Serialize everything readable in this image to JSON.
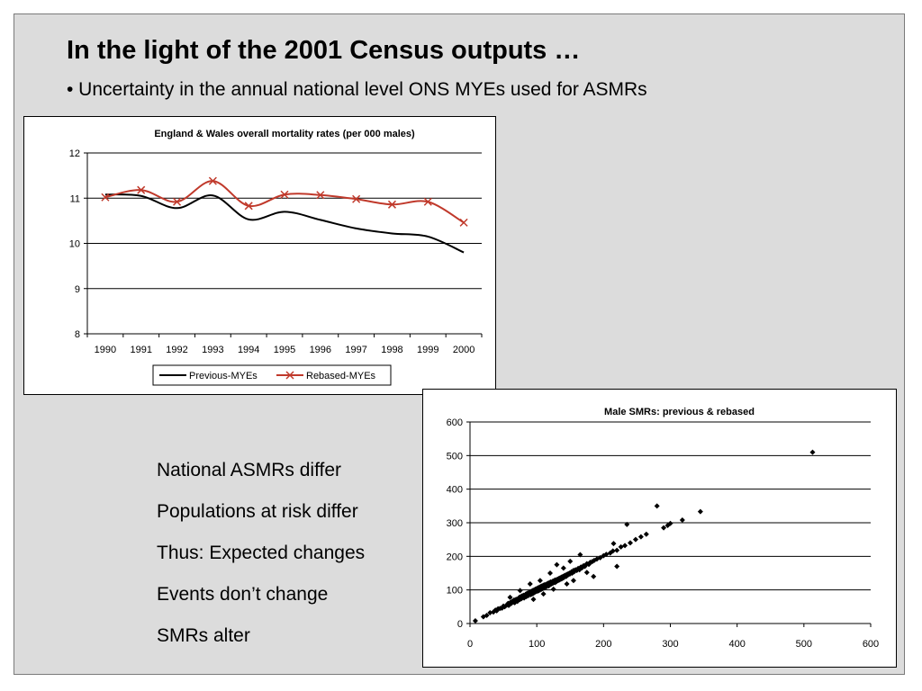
{
  "slide": {
    "title": "In the light of the 2001 Census outputs …",
    "subtitle": "• Uncertainty in the annual national level ONS MYEs used for ASMRs",
    "points": [
      "National ASMRs differ",
      "Populations at risk differ",
      "Thus: Expected changes",
      "Events don’t change",
      "SMRs alter"
    ]
  },
  "chart_data": [
    {
      "type": "line",
      "title": "England & Wales overall mortality rates (per 000 males)",
      "xlabel": "",
      "ylabel": "",
      "x": [
        1990,
        1991,
        1992,
        1993,
        1994,
        1995,
        1996,
        1997,
        1998,
        1999,
        2000
      ],
      "ylim": [
        8,
        12
      ],
      "yticks": [
        8,
        9,
        10,
        11,
        12
      ],
      "grid": "horizontal",
      "legend": "bottom",
      "series": [
        {
          "name": "Previous-MYEs",
          "color": "#000000",
          "marker": "none",
          "values": [
            11.08,
            11.05,
            10.78,
            11.06,
            10.53,
            10.7,
            10.52,
            10.33,
            10.22,
            10.15,
            9.8
          ]
        },
        {
          "name": "Rebased-MYEs",
          "color": "#c0392b",
          "marker": "cross",
          "values": [
            11.02,
            11.18,
            10.92,
            11.38,
            10.83,
            11.08,
            11.07,
            10.98,
            10.86,
            10.92,
            10.46
          ]
        }
      ]
    },
    {
      "type": "scatter",
      "title": "Male SMRs: previous & rebased",
      "xlabel": "",
      "ylabel": "",
      "xlim": [
        0,
        600
      ],
      "ylim": [
        0,
        600
      ],
      "xticks": [
        0,
        100,
        200,
        300,
        400,
        500,
        600
      ],
      "yticks": [
        0,
        100,
        200,
        300,
        400,
        500,
        600
      ],
      "grid": "horizontal",
      "color": "#000000",
      "points": [
        [
          8,
          8
        ],
        [
          20,
          20
        ],
        [
          25,
          24
        ],
        [
          30,
          32
        ],
        [
          35,
          34
        ],
        [
          38,
          40
        ],
        [
          40,
          38
        ],
        [
          42,
          44
        ],
        [
          45,
          45
        ],
        [
          48,
          46
        ],
        [
          50,
          52
        ],
        [
          52,
          50
        ],
        [
          55,
          55
        ],
        [
          57,
          60
        ],
        [
          58,
          54
        ],
        [
          60,
          62
        ],
        [
          60,
          58
        ],
        [
          62,
          60
        ],
        [
          63,
          66
        ],
        [
          65,
          64
        ],
        [
          66,
          70
        ],
        [
          67,
          62
        ],
        [
          68,
          68
        ],
        [
          69,
          72
        ],
        [
          70,
          70
        ],
        [
          71,
          66
        ],
        [
          72,
          74
        ],
        [
          73,
          71
        ],
        [
          74,
          78
        ],
        [
          75,
          72
        ],
        [
          75,
          76
        ],
        [
          76,
          80
        ],
        [
          77,
          74
        ],
        [
          78,
          76
        ],
        [
          78,
          82
        ],
        [
          79,
          79
        ],
        [
          80,
          80
        ],
        [
          80,
          84
        ],
        [
          81,
          76
        ],
        [
          82,
          82
        ],
        [
          83,
          86
        ],
        [
          84,
          80
        ],
        [
          84,
          88
        ],
        [
          85,
          84
        ],
        [
          86,
          90
        ],
        [
          86,
          82
        ],
        [
          87,
          86
        ],
        [
          88,
          92
        ],
        [
          88,
          84
        ],
        [
          89,
          88
        ],
        [
          90,
          90
        ],
        [
          90,
          94
        ],
        [
          91,
          86
        ],
        [
          92,
          92
        ],
        [
          92,
          96
        ],
        [
          93,
          88
        ],
        [
          94,
          94
        ],
        [
          94,
          98
        ],
        [
          95,
          90
        ],
        [
          95,
          96
        ],
        [
          96,
          100
        ],
        [
          96,
          92
        ],
        [
          97,
          98
        ],
        [
          98,
          94
        ],
        [
          98,
          102
        ],
        [
          99,
          96
        ],
        [
          100,
          100
        ],
        [
          100,
          104
        ],
        [
          101,
          96
        ],
        [
          102,
          102
        ],
        [
          102,
          106
        ],
        [
          103,
          98
        ],
        [
          104,
          104
        ],
        [
          104,
          108
        ],
        [
          105,
          100
        ],
        [
          106,
          106
        ],
        [
          106,
          110
        ],
        [
          107,
          102
        ],
        [
          108,
          108
        ],
        [
          108,
          112
        ],
        [
          109,
          104
        ],
        [
          110,
          110
        ],
        [
          110,
          114
        ],
        [
          111,
          106
        ],
        [
          112,
          112
        ],
        [
          112,
          116
        ],
        [
          113,
          108
        ],
        [
          114,
          114
        ],
        [
          115,
          118
        ],
        [
          115,
          110
        ],
        [
          116,
          116
        ],
        [
          117,
          120
        ],
        [
          118,
          112
        ],
        [
          118,
          118
        ],
        [
          119,
          122
        ],
        [
          120,
          116
        ],
        [
          120,
          120
        ],
        [
          121,
          124
        ],
        [
          122,
          118
        ],
        [
          123,
          122
        ],
        [
          124,
          126
        ],
        [
          124,
          120
        ],
        [
          125,
          124
        ],
        [
          126,
          128
        ],
        [
          127,
          122
        ],
        [
          128,
          126
        ],
        [
          128,
          130
        ],
        [
          129,
          124
        ],
        [
          130,
          130
        ],
        [
          131,
          132
        ],
        [
          132,
          128
        ],
        [
          133,
          134
        ],
        [
          134,
          130
        ],
        [
          135,
          136
        ],
        [
          136,
          132
        ],
        [
          137,
          138
        ],
        [
          138,
          134
        ],
        [
          139,
          140
        ],
        [
          140,
          136
        ],
        [
          141,
          142
        ],
        [
          142,
          140
        ],
        [
          143,
          144
        ],
        [
          144,
          140
        ],
        [
          145,
          146
        ],
        [
          146,
          144
        ],
        [
          147,
          148
        ],
        [
          148,
          146
        ],
        [
          149,
          150
        ],
        [
          150,
          148
        ],
        [
          152,
          154
        ],
        [
          153,
          150
        ],
        [
          155,
          158
        ],
        [
          156,
          154
        ],
        [
          158,
          160
        ],
        [
          160,
          158
        ],
        [
          162,
          164
        ],
        [
          164,
          160
        ],
        [
          166,
          168
        ],
        [
          168,
          166
        ],
        [
          170,
          172
        ],
        [
          172,
          170
        ],
        [
          175,
          178
        ],
        [
          178,
          176
        ],
        [
          180,
          182
        ],
        [
          183,
          184
        ],
        [
          186,
          188
        ],
        [
          190,
          192
        ],
        [
          195,
          196
        ],
        [
          200,
          202
        ],
        [
          204,
          206
        ],
        [
          210,
          210
        ],
        [
          214,
          216
        ],
        [
          220,
          218
        ],
        [
          226,
          228
        ],
        [
          232,
          232
        ],
        [
          240,
          240
        ],
        [
          248,
          250
        ],
        [
          256,
          258
        ],
        [
          264,
          266
        ],
        [
          290,
          285
        ],
        [
          296,
          292
        ],
        [
          300,
          298
        ],
        [
          318,
          308
        ],
        [
          345,
          333
        ],
        [
          280,
          350
        ],
        [
          235,
          295
        ],
        [
          215,
          238
        ],
        [
          220,
          170
        ],
        [
          130,
          175
        ],
        [
          165,
          205
        ],
        [
          140,
          165
        ],
        [
          120,
          150
        ],
        [
          105,
          128
        ],
        [
          150,
          185
        ],
        [
          90,
          118
        ],
        [
          185,
          140
        ],
        [
          175,
          152
        ],
        [
          155,
          128
        ],
        [
          75,
          98
        ],
        [
          110,
          88
        ],
        [
          95,
          72
        ],
        [
          60,
          78
        ],
        [
          125,
          102
        ],
        [
          145,
          118
        ],
        [
          513,
          510
        ]
      ]
    }
  ]
}
